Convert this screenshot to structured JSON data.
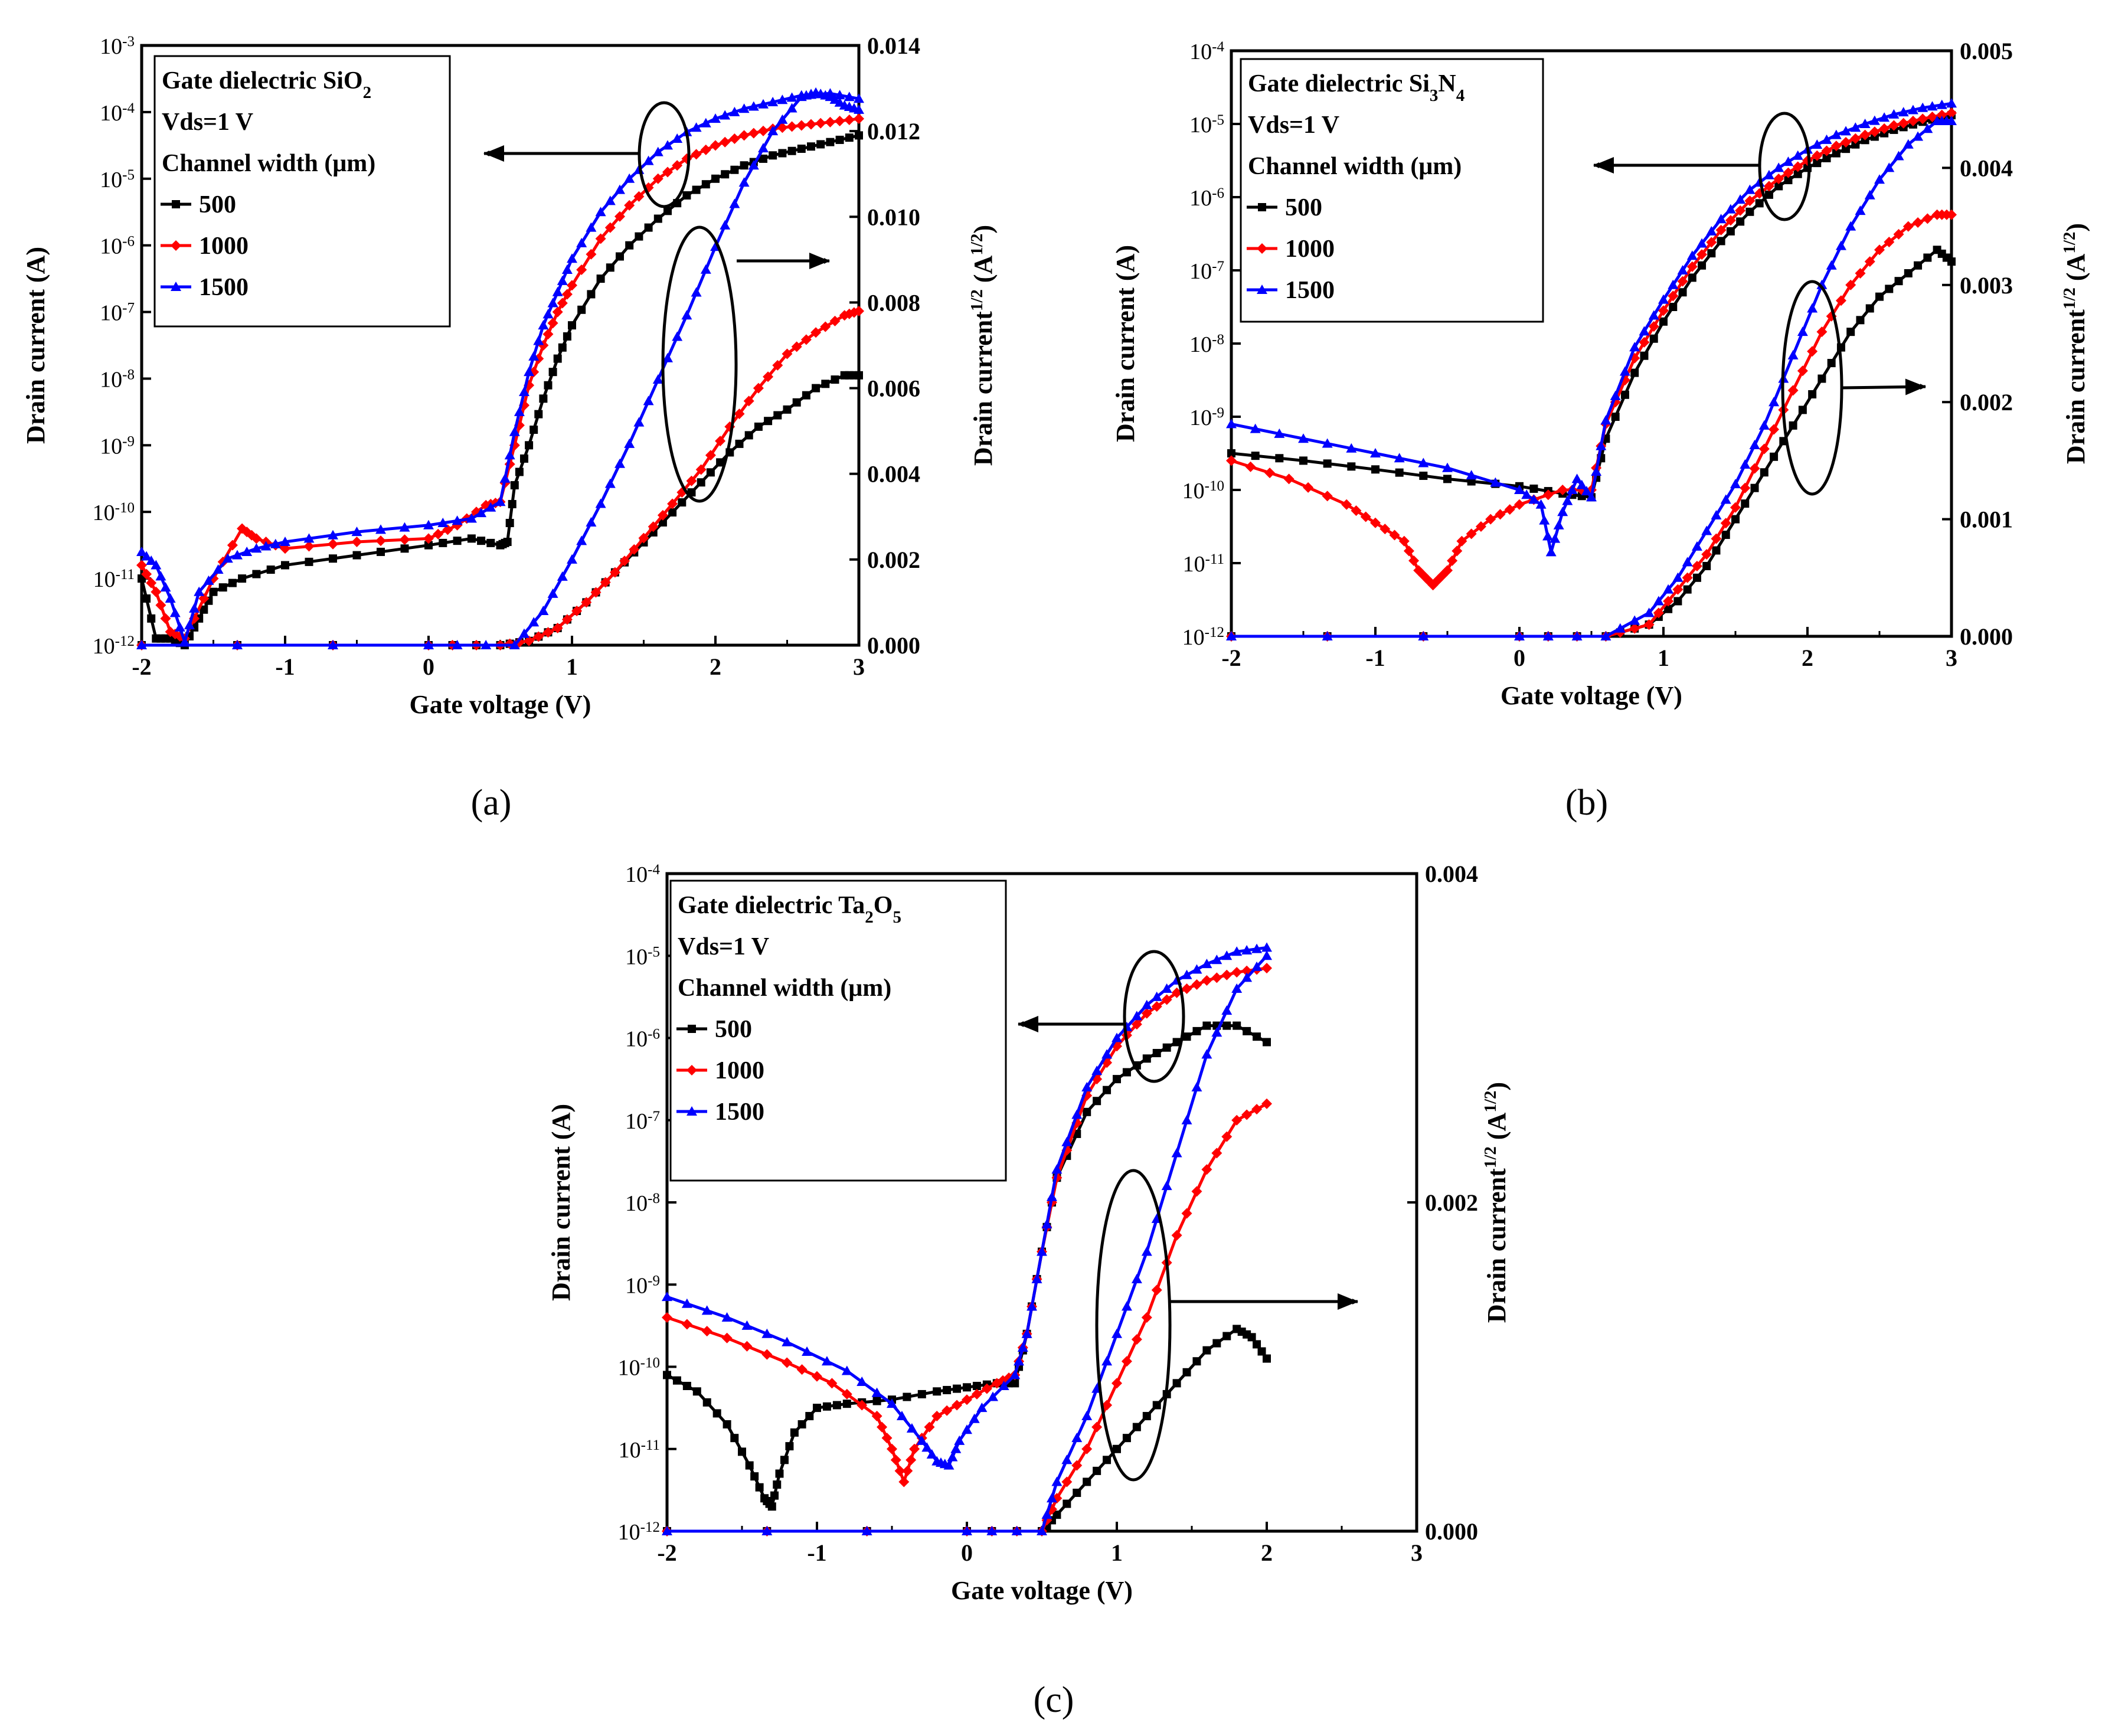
{
  "figure": {
    "panel_labels": [
      "(a)",
      "(b)",
      "(c)"
    ]
  },
  "chart_data": [
    {
      "type": "line",
      "panel": "(a)",
      "xlabel": "Gate voltage (V)",
      "ylabel_left": "Drain current (A)",
      "ylabel_right": "Drain current^1/2 (A^1/2)",
      "xlim": [
        -2,
        3
      ],
      "ylim_left": [
        -12,
        -3
      ],
      "ylim_right": [
        0,
        0.014
      ],
      "left_log_scale": true,
      "x_ticks": [
        "-2",
        "-1",
        "0",
        "1",
        "2",
        "3"
      ],
      "y_ticks_left": [
        "10^-12",
        "10^-11",
        "10^-10",
        "10^-9",
        "10^-8",
        "10^-7",
        "10^-6",
        "10^-5",
        "10^-4",
        "10^-3"
      ],
      "y_ticks_right": [
        "0.000",
        "0.002",
        "0.004",
        "0.006",
        "0.008",
        "0.010",
        "0.012",
        "0.014"
      ],
      "legend": {
        "placement": "top-left",
        "lines": [
          "Gate dielectric SiO2",
          "Vds=1 V",
          "Channel width (μm)"
        ],
        "entries": [
          "500",
          "1000",
          "1500"
        ]
      },
      "series": [
        {
          "name": "500",
          "color": "#000000",
          "marker": "square",
          "axis": "left",
          "x": [
            -2,
            -1.9,
            -1.8,
            -1.7,
            -1.6,
            -1.5,
            -1.3,
            -1.0,
            -0.5,
            0.0,
            0.3,
            0.5,
            0.55,
            0.6,
            0.7,
            0.8,
            0.9,
            1.0,
            1.2,
            1.4,
            1.6,
            1.8,
            2.0,
            2.2,
            2.4,
            2.6,
            2.8,
            3.0
          ],
          "y": [
            -11,
            -11.9,
            -11.9,
            -12.0,
            -11.6,
            -11.2,
            -11.0,
            -10.8,
            -10.65,
            -10.5,
            -10.4,
            -10.5,
            -10.45,
            -9.6,
            -9.0,
            -8.3,
            -7.7,
            -7.2,
            -6.5,
            -6.0,
            -5.6,
            -5.25,
            -5.0,
            -4.8,
            -4.65,
            -4.55,
            -4.45,
            -4.35
          ]
        },
        {
          "name": "1000",
          "color": "#ff0000",
          "marker": "diamond",
          "axis": "left",
          "x": [
            -2,
            -1.9,
            -1.8,
            -1.7,
            -1.5,
            -1.3,
            -1.2,
            -1.0,
            -0.5,
            0.0,
            0.2,
            0.4,
            0.5,
            0.6,
            0.7,
            0.8,
            0.9,
            1.0,
            1.2,
            1.4,
            1.6,
            1.8,
            2.0,
            2.2,
            2.4,
            2.6,
            2.8,
            3.0
          ],
          "y": [
            -10.8,
            -11.2,
            -11.8,
            -11.9,
            -11.0,
            -10.25,
            -10.4,
            -10.55,
            -10.45,
            -10.4,
            -10.2,
            -9.9,
            -9.85,
            -9.0,
            -8.1,
            -7.5,
            -7.0,
            -6.6,
            -5.9,
            -5.4,
            -5.0,
            -4.7,
            -4.5,
            -4.35,
            -4.25,
            -4.2,
            -4.15,
            -4.1
          ]
        },
        {
          "name": "1500",
          "color": "#0000ff",
          "marker": "triangle",
          "axis": "left",
          "x": [
            -2,
            -1.9,
            -1.8,
            -1.7,
            -1.6,
            -1.4,
            -1.2,
            -1.0,
            -0.5,
            0.0,
            0.3,
            0.5,
            0.6,
            0.7,
            0.8,
            0.9,
            1.0,
            1.2,
            1.4,
            1.6,
            1.8,
            2.0,
            2.2,
            2.4,
            2.6,
            2.8,
            3.0
          ],
          "y": [
            -10.6,
            -10.8,
            -11.3,
            -11.95,
            -11.2,
            -10.7,
            -10.55,
            -10.45,
            -10.3,
            -10.2,
            -10.1,
            -9.85,
            -8.8,
            -7.9,
            -7.2,
            -6.7,
            -6.2,
            -5.5,
            -5.0,
            -4.6,
            -4.3,
            -4.1,
            -3.95,
            -3.85,
            -3.75,
            -3.72,
            -3.8
          ]
        },
        {
          "name": "500",
          "color": "#000000",
          "marker": "square",
          "axis": "right",
          "x": [
            -2,
            0.0,
            0.5,
            0.7,
            0.9,
            1.1,
            1.3,
            1.5,
            1.7,
            1.9,
            2.1,
            2.3,
            2.5,
            2.7,
            2.9,
            3.0
          ],
          "y": [
            0.0,
            0.0,
            0.0,
            0.0001,
            0.0004,
            0.001,
            0.0017,
            0.0024,
            0.0031,
            0.0038,
            0.0045,
            0.0051,
            0.0055,
            0.006,
            0.0063,
            0.0063
          ]
        },
        {
          "name": "1000",
          "color": "#ff0000",
          "marker": "diamond",
          "axis": "right",
          "x": [
            -2,
            0.0,
            0.5,
            0.7,
            0.9,
            1.1,
            1.3,
            1.5,
            1.7,
            1.9,
            2.1,
            2.3,
            2.5,
            2.7,
            2.9,
            3.0
          ],
          "y": [
            0.0,
            0.0,
            0.0,
            0.0001,
            0.0004,
            0.001,
            0.0017,
            0.0025,
            0.0033,
            0.0041,
            0.0051,
            0.006,
            0.0068,
            0.0073,
            0.0077,
            0.0078
          ]
        },
        {
          "name": "1500",
          "color": "#0000ff",
          "marker": "triangle",
          "axis": "right",
          "x": [
            -2,
            0.0,
            0.6,
            0.8,
            1.0,
            1.2,
            1.4,
            1.6,
            1.8,
            2.0,
            2.2,
            2.4,
            2.6,
            2.7,
            2.8,
            2.9,
            3.0
          ],
          "y": [
            0.0,
            0.0,
            0.0,
            0.0008,
            0.002,
            0.0033,
            0.0047,
            0.0062,
            0.0077,
            0.0093,
            0.0108,
            0.012,
            0.0128,
            0.0129,
            0.0128,
            0.0126,
            0.0125
          ]
        }
      ]
    },
    {
      "type": "line",
      "panel": "(b)",
      "xlabel": "Gate voltage (V)",
      "ylabel_left": "Drain current (A)",
      "ylabel_right": "Drain current^1/2 (A^1/2)",
      "xlim": [
        -2,
        3
      ],
      "ylim_left": [
        -12,
        -4
      ],
      "ylim_right": [
        0,
        0.005
      ],
      "left_log_scale": true,
      "x_ticks": [
        "-2",
        "-1",
        "0",
        "1",
        "2",
        "3"
      ],
      "y_ticks_left": [
        "10^-12",
        "10^-11",
        "10^-10",
        "10^-9",
        "10^-8",
        "10^-7",
        "10^-6",
        "10^-5",
        "10^-4"
      ],
      "y_ticks_right": [
        "0.000",
        "0.001",
        "0.002",
        "0.003",
        "0.004",
        "0.005"
      ],
      "legend": {
        "placement": "top-left",
        "lines": [
          "Gate dielectric Si3N4",
          "Vds=1 V",
          "Channel width (μm)"
        ],
        "entries": [
          "500",
          "1000",
          "1500"
        ]
      },
      "series": [
        {
          "name": "500",
          "color": "#000000",
          "marker": "square",
          "axis": "left",
          "x": [
            -2,
            -1.5,
            -1.0,
            -0.5,
            0.0,
            0.3,
            0.5,
            0.6,
            0.8,
            1.0,
            1.2,
            1.4,
            1.6,
            1.8,
            2.0,
            2.2,
            2.4,
            2.6,
            2.8,
            3.0
          ],
          "y": [
            -9.5,
            -9.6,
            -9.72,
            -9.85,
            -9.95,
            -10.05,
            -10.1,
            -9.3,
            -8.4,
            -7.7,
            -7.1,
            -6.6,
            -6.2,
            -5.85,
            -5.6,
            -5.4,
            -5.22,
            -5.08,
            -4.97,
            -4.88
          ]
        },
        {
          "name": "1000",
          "color": "#ff0000",
          "marker": "diamond",
          "axis": "left",
          "x": [
            -2,
            -1.6,
            -1.2,
            -1.0,
            -0.8,
            -0.7,
            -0.6,
            -0.5,
            -0.4,
            -0.2,
            0.0,
            0.3,
            0.5,
            0.6,
            0.8,
            1.0,
            1.2,
            1.4,
            1.6,
            1.8,
            2.0,
            2.2,
            2.4,
            2.6,
            2.8,
            3.0
          ],
          "y": [
            -9.6,
            -9.85,
            -10.2,
            -10.45,
            -10.7,
            -11.1,
            -11.3,
            -11.1,
            -10.7,
            -10.4,
            -10.2,
            -10.0,
            -10.0,
            -9.1,
            -8.2,
            -7.55,
            -6.95,
            -6.45,
            -6.05,
            -5.75,
            -5.5,
            -5.3,
            -5.15,
            -5.02,
            -4.93,
            -4.85
          ]
        },
        {
          "name": "1500",
          "color": "#0000ff",
          "marker": "triangle",
          "axis": "left",
          "x": [
            -2,
            -1.5,
            -1.0,
            -0.5,
            0.0,
            0.15,
            0.22,
            0.3,
            0.4,
            0.5,
            0.6,
            0.8,
            1.0,
            1.2,
            1.4,
            1.6,
            1.8,
            2.0,
            2.2,
            2.4,
            2.6,
            2.8,
            3.0
          ],
          "y": [
            -9.1,
            -9.3,
            -9.5,
            -9.7,
            -10.0,
            -10.2,
            -10.85,
            -10.3,
            -9.85,
            -10.1,
            -9.05,
            -8.05,
            -7.4,
            -6.8,
            -6.3,
            -5.9,
            -5.6,
            -5.35,
            -5.15,
            -5.0,
            -4.87,
            -4.78,
            -4.72
          ]
        },
        {
          "name": "500",
          "color": "#000000",
          "marker": "square",
          "axis": "right",
          "x": [
            -2,
            0.0,
            0.6,
            0.9,
            1.1,
            1.3,
            1.5,
            1.7,
            1.9,
            2.1,
            2.3,
            2.5,
            2.7,
            2.9,
            3.0
          ],
          "y": [
            0.0,
            0.0,
            0.0,
            0.0001,
            0.0003,
            0.0006,
            0.001,
            0.0014,
            0.0018,
            0.0022,
            0.0026,
            0.0029,
            0.0031,
            0.0033,
            0.0032
          ]
        },
        {
          "name": "1000",
          "color": "#ff0000",
          "marker": "diamond",
          "axis": "right",
          "x": [
            -2,
            0.0,
            0.6,
            0.9,
            1.1,
            1.3,
            1.5,
            1.7,
            1.9,
            2.1,
            2.3,
            2.5,
            2.7,
            2.9,
            3.0
          ],
          "y": [
            0.0,
            0.0,
            0.0,
            0.0001,
            0.0004,
            0.0007,
            0.0011,
            0.0016,
            0.0021,
            0.0026,
            0.003,
            0.0033,
            0.0035,
            0.0036,
            0.0036
          ]
        },
        {
          "name": "1500",
          "color": "#0000ff",
          "marker": "triangle",
          "axis": "right",
          "x": [
            -2,
            0.0,
            0.6,
            0.9,
            1.1,
            1.3,
            1.5,
            1.7,
            1.9,
            2.1,
            2.3,
            2.5,
            2.7,
            2.9,
            3.0
          ],
          "y": [
            0.0,
            0.0,
            0.0,
            0.0002,
            0.0005,
            0.0009,
            0.0013,
            0.0018,
            0.0024,
            0.003,
            0.0035,
            0.0039,
            0.0042,
            0.0044,
            0.0044
          ]
        }
      ]
    },
    {
      "type": "line",
      "panel": "(c)",
      "xlabel": "Gate voltage (V)",
      "ylabel_left": "Drain current (A)",
      "ylabel_right": "Drain current^1/2 (A^1/2)",
      "xlim": [
        -2,
        3
      ],
      "ylim_left": [
        -12,
        -4
      ],
      "ylim_right": [
        0,
        0.004
      ],
      "left_log_scale": true,
      "x_ticks": [
        "-2",
        "-1",
        "0",
        "1",
        "2",
        "3"
      ],
      "y_ticks_left": [
        "10^-12",
        "10^-11",
        "10^-10",
        "10^-9",
        "10^-8",
        "10^-7",
        "10^-6",
        "10^-5",
        "10^-4"
      ],
      "y_ticks_right": [
        "0.000",
        "0.002",
        "0.004"
      ],
      "legend": {
        "placement": "top-left",
        "lines": [
          "Gate dielectric Ta2O5",
          "Vds=1 V",
          "Channel width (μm)"
        ],
        "entries": [
          "500",
          "1000",
          "1500"
        ]
      },
      "series": [
        {
          "name": "500",
          "color": "#000000",
          "marker": "square",
          "axis": "left",
          "x": [
            -2,
            -1.8,
            -1.6,
            -1.45,
            -1.35,
            -1.3,
            -1.25,
            -1.15,
            -1.0,
            -0.8,
            -0.5,
            -0.2,
            0.0,
            0.2,
            0.32,
            0.4,
            0.5,
            0.6,
            0.8,
            1.0,
            1.2,
            1.4,
            1.6,
            1.8,
            2.0
          ],
          "y": [
            -10.1,
            -10.3,
            -10.7,
            -11.2,
            -11.6,
            -11.7,
            -11.3,
            -10.8,
            -10.5,
            -10.45,
            -10.4,
            -10.3,
            -10.25,
            -10.2,
            -10.2,
            -9.6,
            -8.6,
            -7.7,
            -6.9,
            -6.5,
            -6.25,
            -6.05,
            -5.85,
            -5.85,
            -6.05
          ]
        },
        {
          "name": "1000",
          "color": "#ff0000",
          "marker": "diamond",
          "axis": "left",
          "x": [
            -2,
            -1.6,
            -1.2,
            -0.9,
            -0.6,
            -0.5,
            -0.42,
            -0.35,
            -0.2,
            0.0,
            0.2,
            0.32,
            0.4,
            0.5,
            0.6,
            0.8,
            1.0,
            1.2,
            1.4,
            1.6,
            1.8,
            2.0
          ],
          "y": [
            -9.4,
            -9.65,
            -9.95,
            -10.2,
            -10.6,
            -11.0,
            -11.4,
            -11.0,
            -10.6,
            -10.4,
            -10.2,
            -10.1,
            -9.6,
            -8.6,
            -7.7,
            -6.7,
            -6.1,
            -5.7,
            -5.45,
            -5.3,
            -5.2,
            -5.15
          ]
        },
        {
          "name": "1500",
          "color": "#0000ff",
          "marker": "triangle",
          "axis": "left",
          "x": [
            -2,
            -1.6,
            -1.2,
            -0.8,
            -0.5,
            -0.3,
            -0.2,
            -0.12,
            -0.05,
            0.1,
            0.32,
            0.4,
            0.5,
            0.6,
            0.8,
            1.0,
            1.2,
            1.4,
            1.6,
            1.8,
            2.0
          ],
          "y": [
            -9.15,
            -9.4,
            -9.7,
            -10.05,
            -10.45,
            -10.9,
            -11.15,
            -11.2,
            -10.9,
            -10.5,
            -10.1,
            -9.6,
            -8.6,
            -7.6,
            -6.6,
            -6.0,
            -5.6,
            -5.3,
            -5.1,
            -4.95,
            -4.9
          ]
        },
        {
          "name": "500",
          "color": "#000000",
          "marker": "square",
          "axis": "right",
          "x": [
            -2,
            0.0,
            0.5,
            0.6,
            0.8,
            1.0,
            1.2,
            1.4,
            1.6,
            1.8,
            1.9,
            2.0
          ],
          "y": [
            0.0,
            0.0,
            0.0,
            0.0001,
            0.0003,
            0.0005,
            0.0007,
            0.0009,
            0.0011,
            0.00123,
            0.00118,
            0.00105
          ]
        },
        {
          "name": "1000",
          "color": "#ff0000",
          "marker": "diamond",
          "axis": "right",
          "x": [
            -2,
            0.0,
            0.5,
            0.6,
            0.8,
            1.0,
            1.2,
            1.4,
            1.6,
            1.8,
            2.0
          ],
          "y": [
            0.0,
            0.0,
            0.0,
            0.0002,
            0.0005,
            0.0009,
            0.0013,
            0.0018,
            0.0022,
            0.0025,
            0.0026
          ]
        },
        {
          "name": "1500",
          "color": "#0000ff",
          "marker": "triangle",
          "axis": "right",
          "x": [
            -2,
            0.0,
            0.5,
            0.6,
            0.8,
            1.0,
            1.2,
            1.4,
            1.6,
            1.8,
            2.0
          ],
          "y": [
            0.0,
            0.0,
            0.0,
            0.0003,
            0.0007,
            0.0012,
            0.0017,
            0.0023,
            0.0029,
            0.0033,
            0.0035
          ]
        }
      ]
    }
  ]
}
